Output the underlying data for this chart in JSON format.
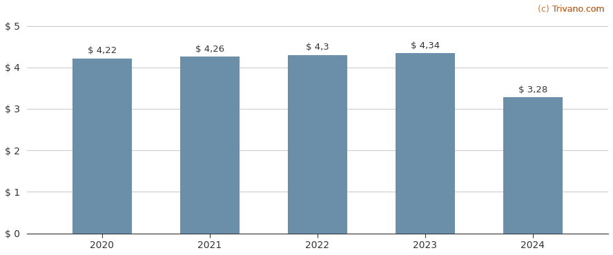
{
  "years": [
    2020,
    2021,
    2022,
    2023,
    2024
  ],
  "values": [
    4.22,
    4.26,
    4.3,
    4.34,
    3.28
  ],
  "labels": [
    "$ 4,22",
    "$ 4,26",
    "$ 4,3",
    "$ 4,34",
    "$ 3,28"
  ],
  "bar_color": "#6b8fa8",
  "background_color": "#ffffff",
  "yticks": [
    0,
    1,
    2,
    3,
    4,
    5
  ],
  "ytick_labels": [
    "$ 0",
    "$ 1",
    "$ 2",
    "$ 3",
    "$ 4",
    "$ 5"
  ],
  "ylim": [
    0,
    5.2
  ],
  "watermark_c": "(c)",
  "watermark_rest": " Trivano.com",
  "watermark_color_c": "#e07020",
  "watermark_color_rest": "#555555",
  "grid_color": "#cccccc",
  "label_fontsize": 9.5,
  "tick_fontsize": 10,
  "watermark_fontsize": 9
}
